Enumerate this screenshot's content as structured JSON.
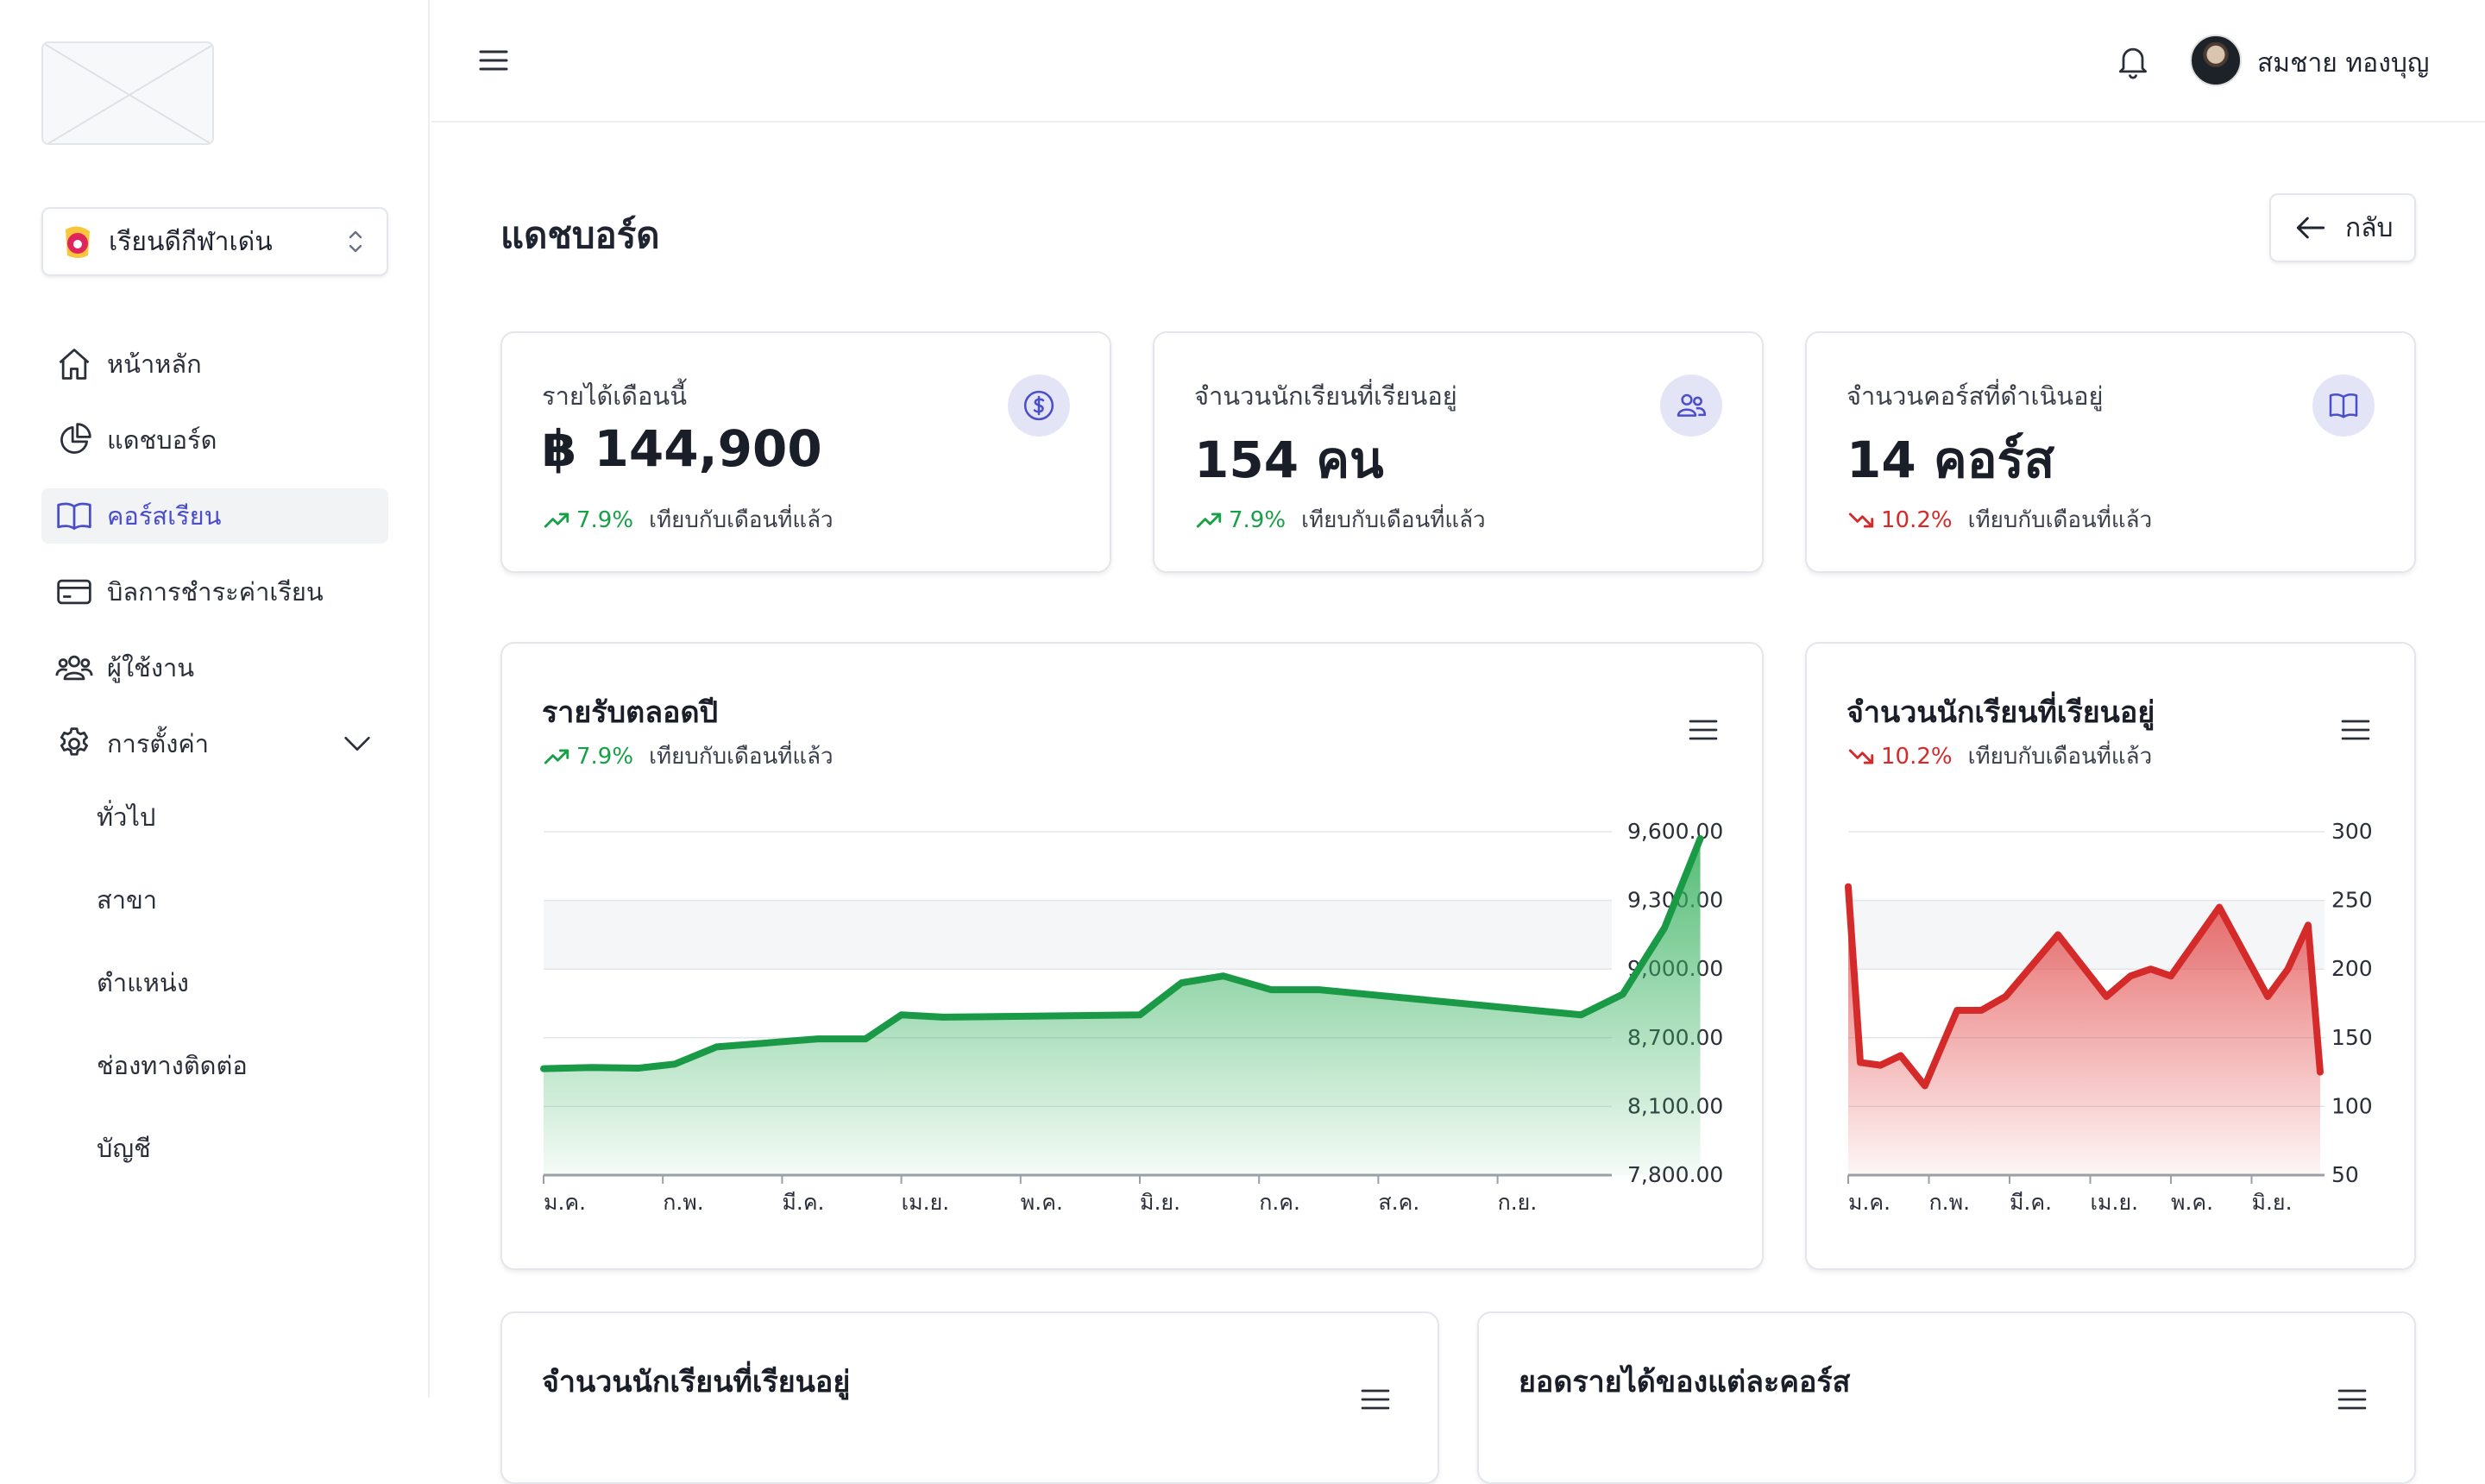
{
  "brand": {
    "school_name": "เรียนดีกีฬาเด่น"
  },
  "sidebar": {
    "items": [
      {
        "label": "หน้าหลัก",
        "icon": "home-icon"
      },
      {
        "label": "แดชบอร์ด",
        "icon": "pie-chart-icon"
      },
      {
        "label": "คอร์สเรียน",
        "icon": "book-open-icon",
        "active": true
      },
      {
        "label": "บิลการชำระค่าเรียน",
        "icon": "credit-card-icon"
      },
      {
        "label": "ผู้ใช้งาน",
        "icon": "users-icon"
      },
      {
        "label": "การตั้งค่า",
        "icon": "gear-icon",
        "expanded": true
      }
    ],
    "settings_sub": [
      "ทั่วไป",
      "สาขา",
      "ตำแหน่ง",
      "ช่องทางติดต่อ",
      "บัญชี"
    ]
  },
  "header": {
    "user_name": "สมชาย ทองบุญ"
  },
  "page": {
    "title": "แดชบอร์ด",
    "back_label": "กลับ"
  },
  "stats": [
    {
      "label": "รายได้เดือนนี้",
      "value": "฿ 144,900",
      "change": "7.9%",
      "direction": "up",
      "compare": "เทียบกับเดือนที่แล้ว",
      "icon": "dollar-icon"
    },
    {
      "label": "จำนวนนักเรียนที่เรียนอยู่",
      "value": "154 คน",
      "change": "7.9%",
      "direction": "up",
      "compare": "เทียบกับเดือนที่แล้ว",
      "icon": "users-icon"
    },
    {
      "label": "จำนวนคอร์สที่ดำเนินอยู่",
      "value": "14 คอร์ส",
      "change": "10.2%",
      "direction": "down",
      "compare": "เทียบกับเดือนที่แล้ว",
      "icon": "book-open-icon"
    }
  ],
  "charts": {
    "revenue": {
      "title": "รายรับตลอดปี",
      "change": "7.9%",
      "compare": "เทียบกับเดือนที่แล้ว"
    },
    "students": {
      "title": "จำนวนนักเรียนที่เรียนอยู่",
      "change": "10.2%",
      "compare": "เทียบกับเดือนที่แล้ว"
    },
    "bottom_left": {
      "title": "จำนวนนักเรียนที่เรียนอยู่"
    },
    "bottom_right": {
      "title": "ยอดรายได้ของแต่ละคอร์ส"
    }
  },
  "colors": {
    "accent": "#4a4ec8",
    "up": "#18a047",
    "down": "#d42a2a",
    "revenue_line": "#1a9a46",
    "students_line": "#d42a2a"
  },
  "chart_data": [
    {
      "type": "area",
      "title": "รายรับตลอดปี",
      "x_tick_labels": [
        "ม.ค.",
        "ก.พ.",
        "มี.ค.",
        "เม.ย.",
        "พ.ค.",
        "มิ.ย.",
        "ก.ค.",
        "ส.ค.",
        "ก.ย."
      ],
      "y_tick_labels": [
        "7,800.00",
        "8,100.00",
        "8,700.00",
        "9,000.00",
        "9,300.00",
        "9,600.00"
      ],
      "y_ticks": [
        7800,
        8100,
        8700,
        9000,
        9300,
        9600
      ],
      "x": [
        0,
        0.4,
        0.8,
        1.1,
        1.45,
        2.3,
        2.7,
        3.0,
        3.35,
        5.0,
        5.35,
        5.7,
        6.1,
        6.5,
        8.7,
        9.05,
        9.4,
        9.7
      ],
      "values": [
        8430,
        8440,
        8435,
        8470,
        8620,
        8690,
        8690,
        8800,
        8790,
        8800,
        8940,
        8970,
        8910,
        8910,
        8800,
        8890,
        9180,
        9570
      ],
      "grid": true,
      "y_axis_position": "right"
    },
    {
      "type": "area",
      "title": "จำนวนนักเรียนที่เรียนอยู่",
      "x_tick_labels": [
        "ม.ค.",
        "ก.พ.",
        "มี.ค.",
        "เม.ย.",
        "พ.ค.",
        "มิ.ย."
      ],
      "y_tick_labels": [
        "50",
        "100",
        "150",
        "200",
        "250",
        "300"
      ],
      "y_ticks": [
        50,
        100,
        150,
        200,
        250,
        300
      ],
      "x": [
        0,
        0.15,
        0.4,
        0.65,
        0.95,
        1.35,
        1.65,
        1.95,
        2.6,
        3.2,
        3.5,
        3.75,
        4.0,
        4.6,
        5.2,
        5.45,
        5.7,
        5.85
      ],
      "values": [
        260,
        132,
        130,
        137,
        115,
        170,
        170,
        180,
        225,
        180,
        195,
        200,
        195,
        245,
        180,
        200,
        232,
        125
      ],
      "grid": true,
      "y_axis_position": "right"
    }
  ]
}
